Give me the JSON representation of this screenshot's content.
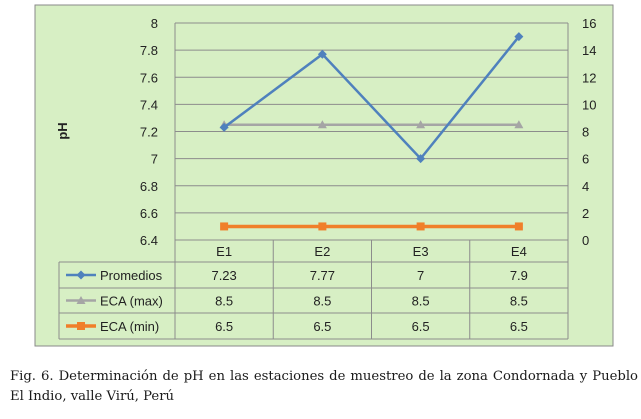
{
  "chart_data": {
    "type": "line",
    "title": "",
    "ylabel": "pH",
    "xlabel": "",
    "categories": [
      "E1",
      "E2",
      "E3",
      "E4"
    ],
    "y_left": {
      "min": 6.4,
      "max": 8,
      "step": 0.2
    },
    "y_right": {
      "min": 0,
      "max": 16,
      "step": 2
    },
    "y_left_ticks": [
      "8",
      "7.8",
      "7.6",
      "7.4",
      "7.2",
      "7",
      "6.8",
      "6.6",
      "6.4"
    ],
    "y_right_ticks": [
      "16",
      "14",
      "12",
      "10",
      "8",
      "6",
      "4",
      "2",
      "0"
    ],
    "grid": "horizontal",
    "legend_placement": "data table below plot",
    "series": [
      {
        "name": "Promedios",
        "axis": "left",
        "marker": "diamond",
        "color": "#4F81BD",
        "values": [
          7.23,
          7.77,
          7,
          7.9
        ],
        "labels": [
          "7.23",
          "7.77",
          "7",
          "7.9"
        ]
      },
      {
        "name": "ECA (max)",
        "axis": "right",
        "marker": "triangle",
        "color": "#A5A5A5",
        "values": [
          8.5,
          8.5,
          8.5,
          8.5
        ],
        "labels": [
          "8.5",
          "8.5",
          "8.5",
          "8.5"
        ]
      },
      {
        "name": "ECA (min)",
        "axis": "left",
        "marker": "square",
        "color": "#F07F2A",
        "values": [
          6.5,
          6.5,
          6.5,
          6.5
        ],
        "labels": [
          "6.5",
          "6.5",
          "6.5",
          "6.5"
        ]
      }
    ]
  },
  "colors": {
    "background": "#D7EFC4",
    "border": "#8A8A8A",
    "grid": "#8C8C8C"
  },
  "caption": {
    "label": "Fig. 6.",
    "text": "Determinación de pH en las estaciones de muestreo de la zona Condornada y Pueblo El Indio, valle Virú, Perú"
  }
}
